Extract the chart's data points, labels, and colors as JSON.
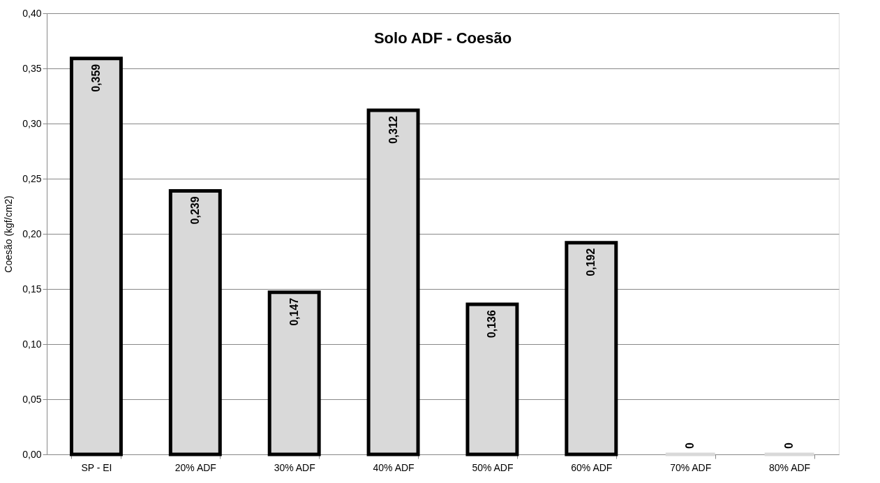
{
  "chart_data": {
    "type": "bar",
    "title": "Solo ADF - Coesão",
    "ylabel": "Coesão (kgf/cm2)",
    "categories": [
      "SP - EI",
      "20% ADF",
      "30% ADF",
      "40% ADF",
      "50% ADF",
      "60% ADF",
      "70% ADF",
      "80% ADF"
    ],
    "values": [
      0.359,
      0.239,
      0.147,
      0.312,
      0.136,
      0.192,
      0,
      0
    ],
    "value_labels": [
      "0,359",
      "0,239",
      "0,147",
      "0,312",
      "0,136",
      "0,192",
      "0",
      "0"
    ],
    "color": "#d9d9d9",
    "ylim": [
      0,
      0.4
    ],
    "yticks": [
      {
        "value": 0,
        "label": "0,00"
      },
      {
        "value": 0.05,
        "label": "0,05"
      },
      {
        "value": 0.1,
        "label": "0,10"
      },
      {
        "value": 0.15,
        "label": "0,15"
      },
      {
        "value": 0.2,
        "label": "0,20"
      },
      {
        "value": 0.25,
        "label": "0,25"
      },
      {
        "value": 0.3,
        "label": "0,30"
      },
      {
        "value": 0.35,
        "label": "0,35"
      },
      {
        "value": 0.4,
        "label": "0,40"
      }
    ],
    "grid": "y",
    "legend": false
  }
}
